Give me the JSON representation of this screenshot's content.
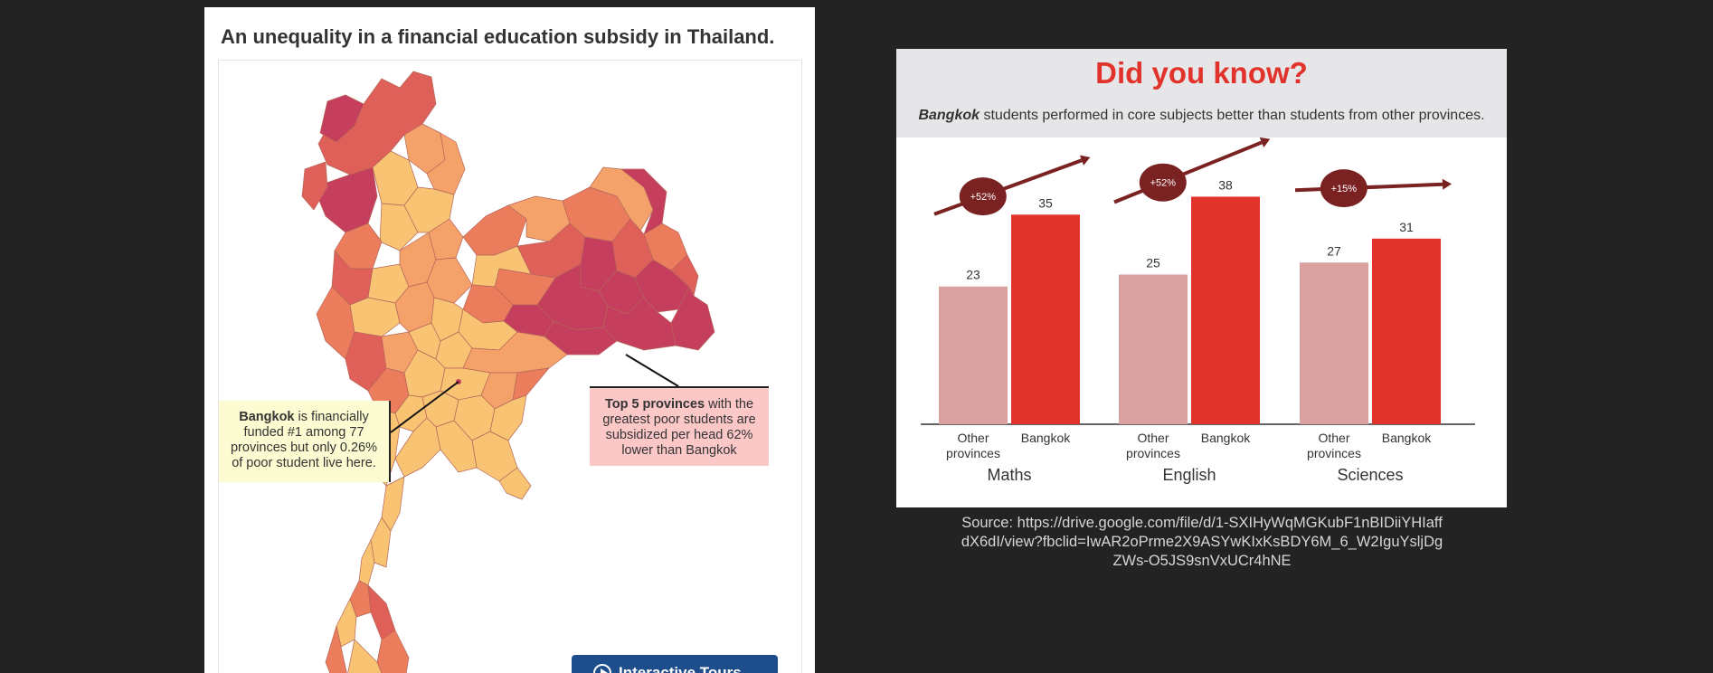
{
  "map_card": {
    "title": "An unequality in a financial education subsidy in Thailand.",
    "callout_bangkok": {
      "bold": "Bangkok",
      "rest": " is financially funded #1 among 77 provinces but only 0.26% of poor student live here."
    },
    "callout_top5": {
      "bold": "Top 5 provinces",
      "rest": " with the greatest poor students are subsidized per head 62% lower than Bangkok"
    },
    "tours_button": "Interactive Tours",
    "colors": {
      "lightest": "#f9c374",
      "light": "#f5a26a",
      "mid": "#eb7d5d",
      "dark": "#de6058",
      "darkest": "#c63e5e"
    }
  },
  "did_you_know": {
    "title": "Did you know?",
    "subtitle_bold": "Bangkok",
    "subtitle_rest": " students performed in core subjects better than students from other provinces."
  },
  "chart_data": {
    "type": "bar",
    "categories": [
      "Maths",
      "English",
      "Sciences"
    ],
    "bar_labels": [
      "Other provinces",
      "Bangkok"
    ],
    "series": [
      {
        "name": "Other provinces",
        "values": [
          23,
          25,
          27
        ],
        "color": "#daa1a1"
      },
      {
        "name": "Bangkok",
        "values": [
          35,
          38,
          31
        ],
        "color": "#e1332b"
      }
    ],
    "increase_labels": [
      "+52%",
      "+52%",
      "+15%"
    ],
    "arrow_color": "#7a2121"
  },
  "source_text": "Source: https://drive.google.com/file/d/1-SXIHyWqMGKubF1nBIDiiYHIaffdX6dI/view?fbclid=IwAR2oPrme2X9ASYwKIxKsBDY6M_6_W2IguYsljDgZWs-O5JS9snVxUCr4hNE"
}
